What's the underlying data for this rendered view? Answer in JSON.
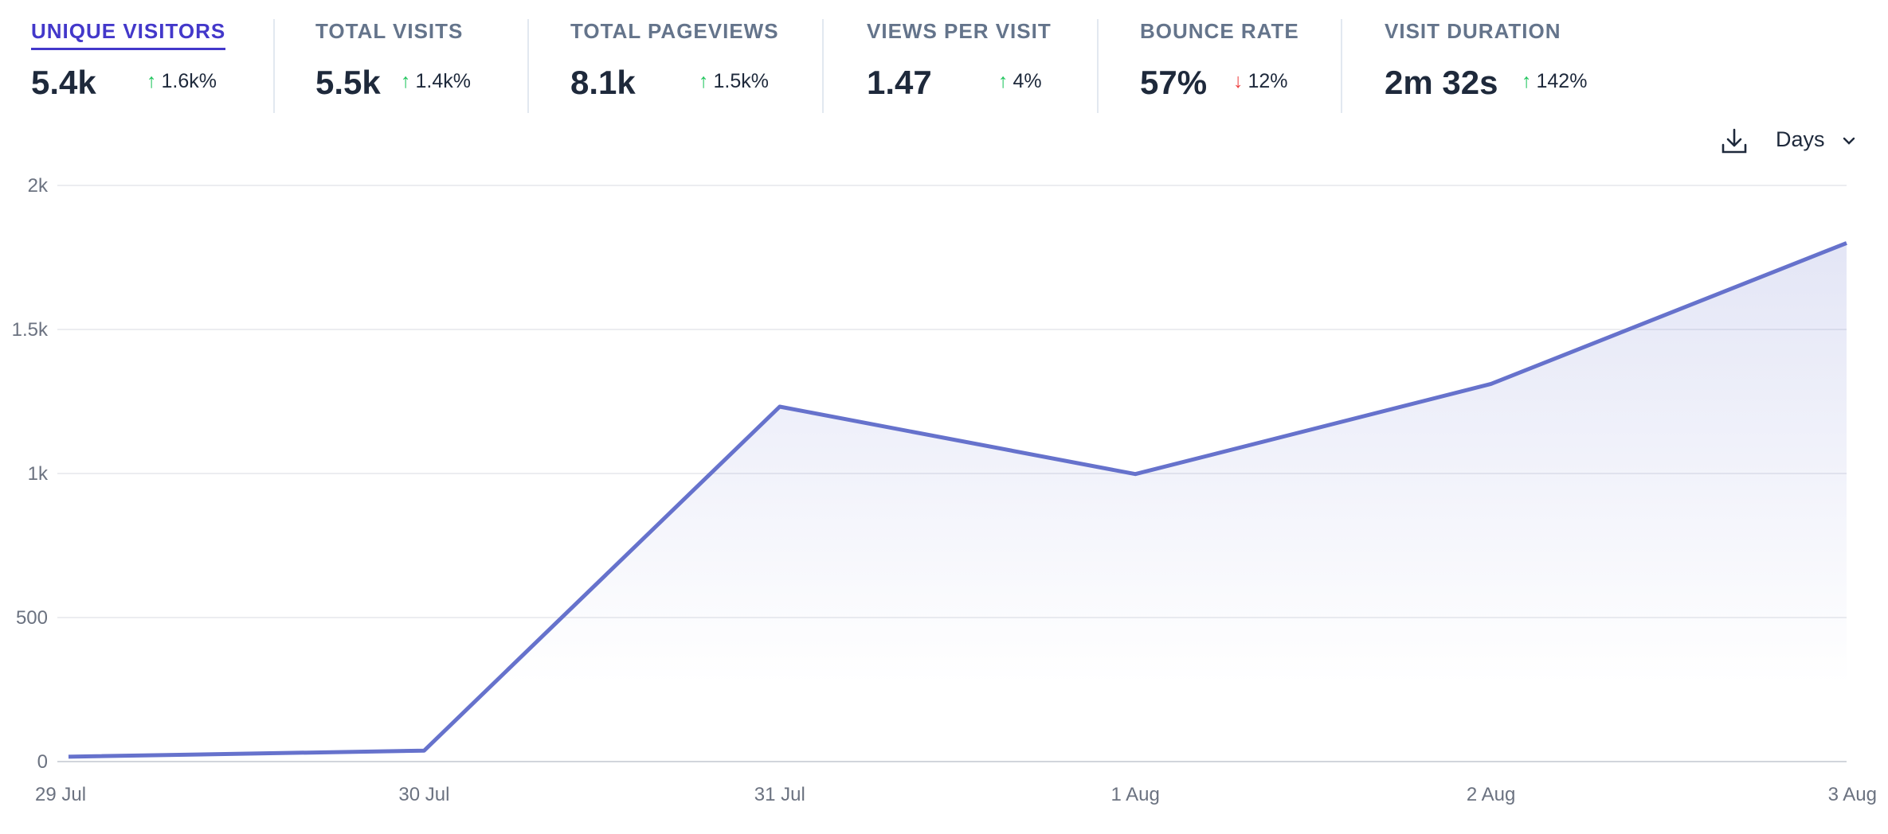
{
  "metrics": [
    {
      "label": "UNIQUE VISITORS",
      "value": "5.4k",
      "change": "1.6k%",
      "direction": "up",
      "active": true
    },
    {
      "label": "TOTAL VISITS",
      "value": "5.5k",
      "change": "1.4k%",
      "direction": "up",
      "active": false
    },
    {
      "label": "TOTAL PAGEVIEWS",
      "value": "8.1k",
      "change": "1.5k%",
      "direction": "up",
      "active": false
    },
    {
      "label": "VIEWS PER VISIT",
      "value": "1.47",
      "change": "4%",
      "direction": "up",
      "active": false
    },
    {
      "label": "BOUNCE RATE",
      "value": "57%",
      "change": "12%",
      "direction": "down",
      "active": false
    },
    {
      "label": "VISIT DURATION",
      "value": "2m 32s",
      "change": "142%",
      "direction": "up",
      "active": false
    }
  ],
  "controls": {
    "download_icon": "download-icon",
    "interval": "Days",
    "interval_icon": "chevron-down-icon"
  },
  "colors": {
    "accent": "#4338ca",
    "line": "#6672cc",
    "up": "#22c55e",
    "down": "#ef4444"
  },
  "chart_data": {
    "type": "area",
    "categories": [
      "29 Jul",
      "30 Jul",
      "31 Jul",
      "1 Aug",
      "2 Aug",
      "3 Aug"
    ],
    "values": [
      17,
      38,
      1232,
      998,
      1311,
      1800
    ],
    "ylim": [
      0,
      2000
    ],
    "yticks": [
      0,
      500,
      1000,
      1500,
      2000
    ],
    "ytick_labels": [
      "0",
      "500",
      "1k",
      "1.5k",
      "2k"
    ],
    "grid": true
  }
}
